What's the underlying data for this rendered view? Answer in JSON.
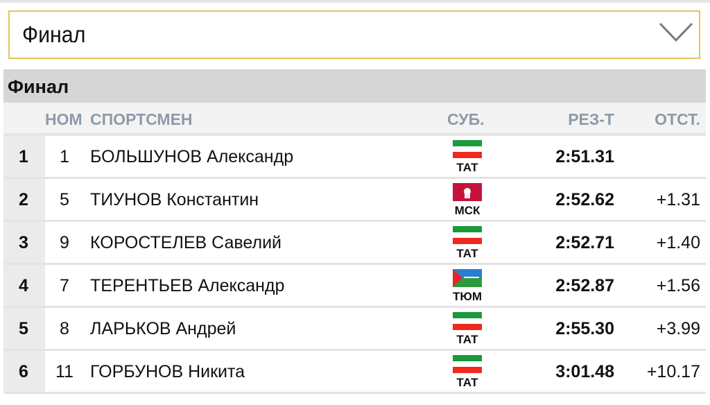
{
  "select": {
    "value": "Финал"
  },
  "table": {
    "title": "Финал",
    "headers": {
      "num": "НОМ",
      "athlete": "СПОРТСМЕН",
      "region": "СУБ.",
      "result": "РЕЗ-Т",
      "gap": "ОТСТ."
    },
    "rows": [
      {
        "place": "1",
        "num": "1",
        "name": "БОЛЬШУНОВ Александр",
        "region": "ТАТ",
        "flag": "tatarstan",
        "result": "2:51.31",
        "gap": ""
      },
      {
        "place": "2",
        "num": "5",
        "name": "ТИУНОВ Константин",
        "region": "МСК",
        "flag": "moscow",
        "result": "2:52.62",
        "gap": "+1.31"
      },
      {
        "place": "3",
        "num": "9",
        "name": "КОРОСТЕЛЕВ Савелий",
        "region": "ТАТ",
        "flag": "tatarstan",
        "result": "2:52.71",
        "gap": "+1.40"
      },
      {
        "place": "4",
        "num": "7",
        "name": "ТЕРЕНТЬЕВ Александр",
        "region": "ТЮМ",
        "flag": "tyumen",
        "result": "2:52.87",
        "gap": "+1.56"
      },
      {
        "place": "5",
        "num": "8",
        "name": "ЛАРЬКОВ Андрей",
        "region": "ТАТ",
        "flag": "tatarstan",
        "result": "2:55.30",
        "gap": "+3.99"
      },
      {
        "place": "6",
        "num": "11",
        "name": "ГОРБУНОВ Никита",
        "region": "ТАТ",
        "flag": "tatarstan",
        "result": "3:01.48",
        "gap": "+10.17"
      }
    ]
  },
  "colors": {
    "select_border": "#e2c35a",
    "header_text": "#8e9aa8"
  }
}
